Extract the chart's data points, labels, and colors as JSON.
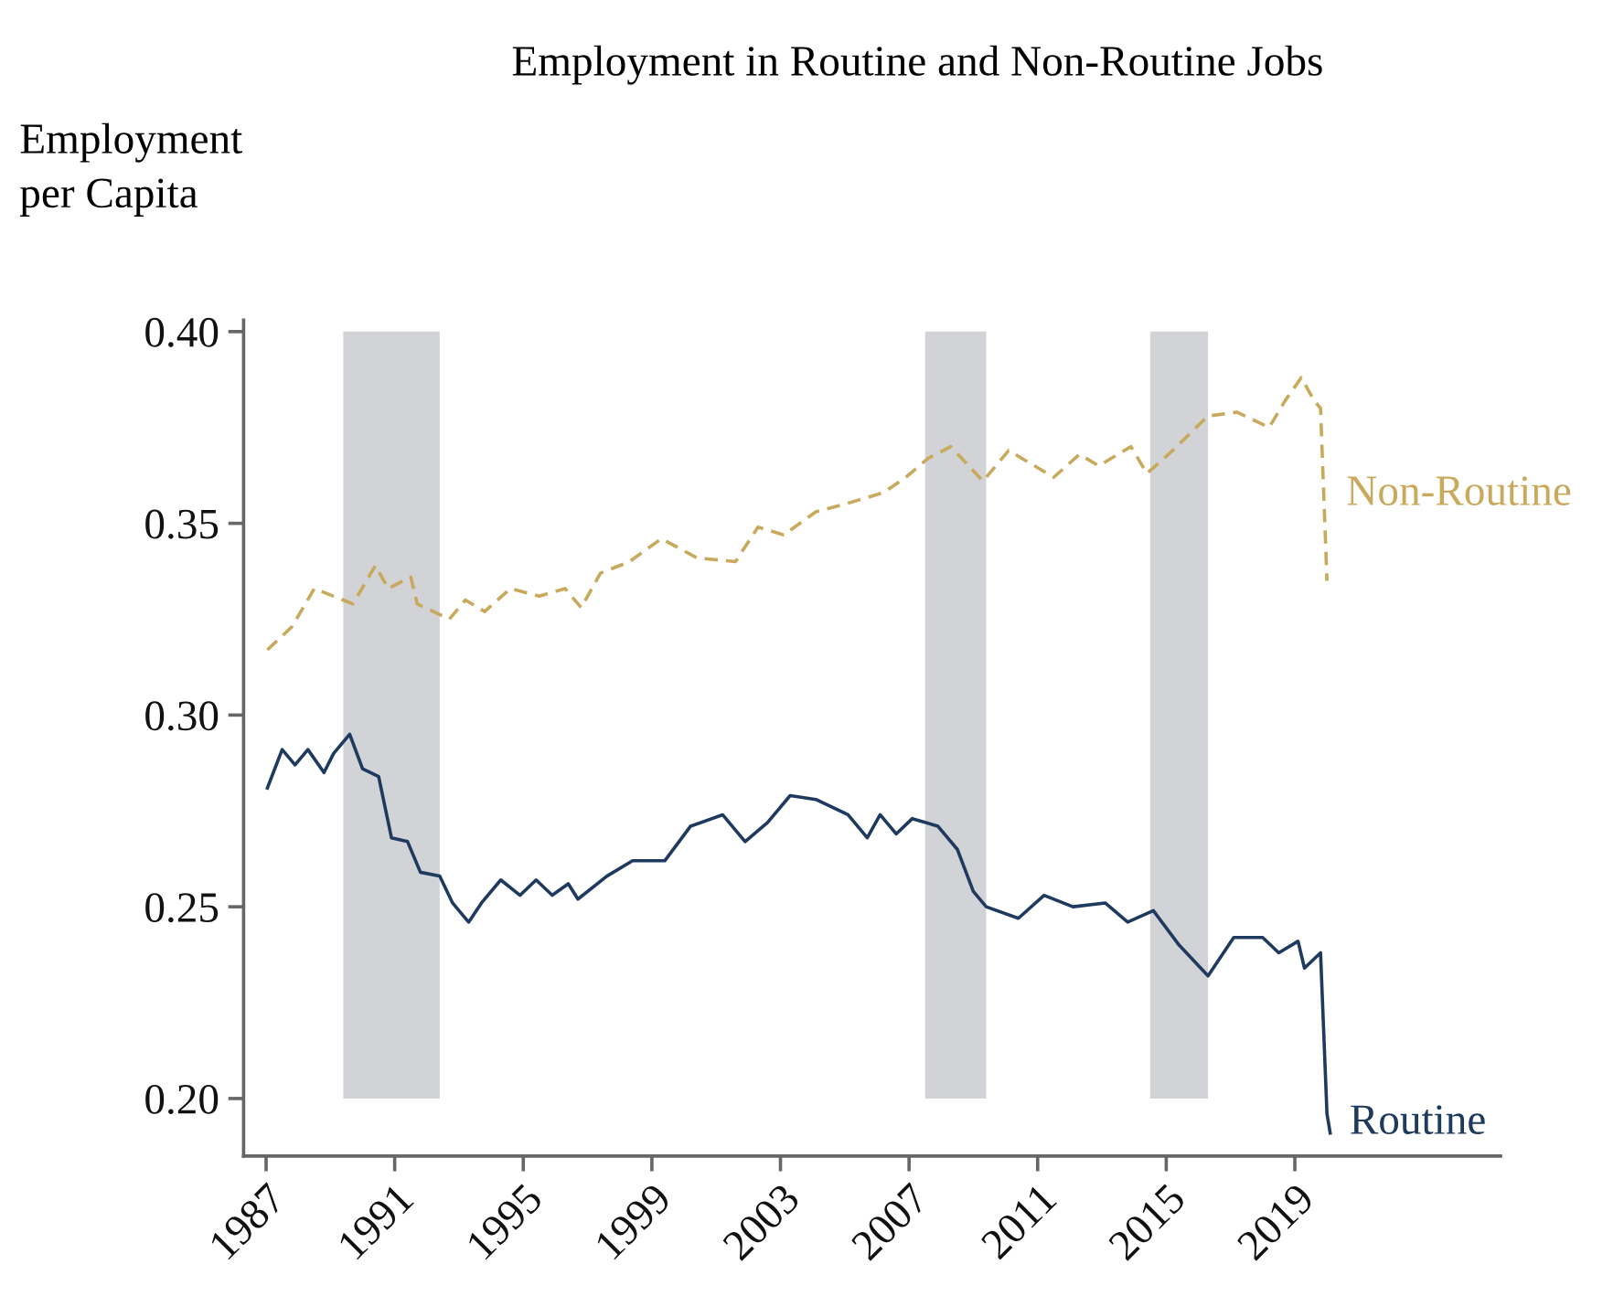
{
  "chart_data": {
    "type": "line",
    "title": "Employment in Routine and Non-Routine Jobs",
    "ylabel": "Employment\nper Capita",
    "xlim": [
      1986.3,
      2025.4
    ],
    "xticks": [
      1987,
      1991,
      1995,
      1999,
      2003,
      2007,
      2011,
      2015,
      2019
    ],
    "ylim": [
      0.185,
      0.403
    ],
    "yticks": [
      {
        "value": 0.2,
        "label": "0.20"
      },
      {
        "value": 0.25,
        "label": "0.25"
      },
      {
        "value": 0.3,
        "label": "0.30"
      },
      {
        "value": 0.35,
        "label": "0.35"
      },
      {
        "value": 0.4,
        "label": "0.40"
      }
    ],
    "grid": false,
    "legend": false,
    "bands": [
      {
        "axis": "x",
        "from": 1989.4,
        "to": 1992.4,
        "color": "#d1d3d6"
      },
      {
        "axis": "x",
        "from": 2007.5,
        "to": 2009.4,
        "color": "#d1d3d6"
      },
      {
        "axis": "x",
        "from": 2014.5,
        "to": 2016.3,
        "color": "#d1d3d6"
      }
    ],
    "series": [
      {
        "name": "Non-Routine",
        "color": "#c9a95c",
        "line_style": "dashed",
        "x": [
          1987.04,
          1987.8,
          1988.5,
          1989.1,
          1989.7,
          1990.4,
          1990.8,
          1991.5,
          1991.7,
          1992.7,
          1993.2,
          1993.8,
          1994.6,
          1995.5,
          1996.3,
          1996.8,
          1997.4,
          1998.3,
          1999.3,
          2000.4,
          2001.6,
          2002.3,
          2003.1,
          2004.1,
          2005.0,
          2006.2,
          2006.9,
          2007.6,
          2008.3,
          2009.3,
          2010.1,
          2011.5,
          2012.3,
          2012.9,
          2013.9,
          2014.4,
          2015.2,
          2016.3,
          2017.2,
          2018.2,
          2018.7,
          2019.2,
          2019.6,
          2019.8,
          2020.0
        ],
        "values": [
          0.317,
          0.323,
          0.333,
          0.331,
          0.329,
          0.339,
          0.333,
          0.336,
          0.329,
          0.325,
          0.33,
          0.327,
          0.333,
          0.331,
          0.333,
          0.328,
          0.337,
          0.34,
          0.346,
          0.341,
          0.34,
          0.349,
          0.347,
          0.353,
          0.355,
          0.358,
          0.362,
          0.367,
          0.37,
          0.361,
          0.369,
          0.362,
          0.368,
          0.365,
          0.37,
          0.363,
          0.369,
          0.378,
          0.379,
          0.375,
          0.382,
          0.388,
          0.382,
          0.38,
          0.335
        ]
      },
      {
        "name": "Routine",
        "color": "#1f3a5f",
        "line_style": "solid",
        "x": [
          1987.04,
          1987.5,
          1987.9,
          1988.3,
          1988.8,
          1989.1,
          1989.6,
          1990.0,
          1990.5,
          1990.9,
          1991.4,
          1991.8,
          1992.4,
          1992.8,
          1993.3,
          1993.7,
          1994.3,
          1994.9,
          1995.4,
          1995.9,
          1996.4,
          1996.7,
          1997.6,
          1998.4,
          1999.4,
          2000.2,
          2001.2,
          2001.9,
          2002.6,
          2003.3,
          2004.1,
          2005.1,
          2005.7,
          2006.1,
          2006.6,
          2007.1,
          2007.9,
          2008.5,
          2009.0,
          2009.4,
          2010.4,
          2011.2,
          2012.1,
          2013.1,
          2013.8,
          2014.6,
          2015.4,
          2016.3,
          2017.1,
          2018.0,
          2018.5,
          2019.1,
          2019.3,
          2019.8,
          2020.0,
          2020.1
        ],
        "values": [
          0.281,
          0.291,
          0.287,
          0.291,
          0.285,
          0.29,
          0.295,
          0.286,
          0.284,
          0.268,
          0.267,
          0.259,
          0.258,
          0.251,
          0.246,
          0.251,
          0.257,
          0.253,
          0.257,
          0.253,
          0.256,
          0.252,
          0.258,
          0.262,
          0.262,
          0.271,
          0.274,
          0.267,
          0.272,
          0.279,
          0.278,
          0.274,
          0.268,
          0.274,
          0.269,
          0.273,
          0.271,
          0.265,
          0.254,
          0.25,
          0.247,
          0.253,
          0.25,
          0.251,
          0.246,
          0.249,
          0.24,
          0.232,
          0.242,
          0.242,
          0.238,
          0.241,
          0.234,
          0.238,
          0.196,
          0.191
        ]
      }
    ]
  }
}
